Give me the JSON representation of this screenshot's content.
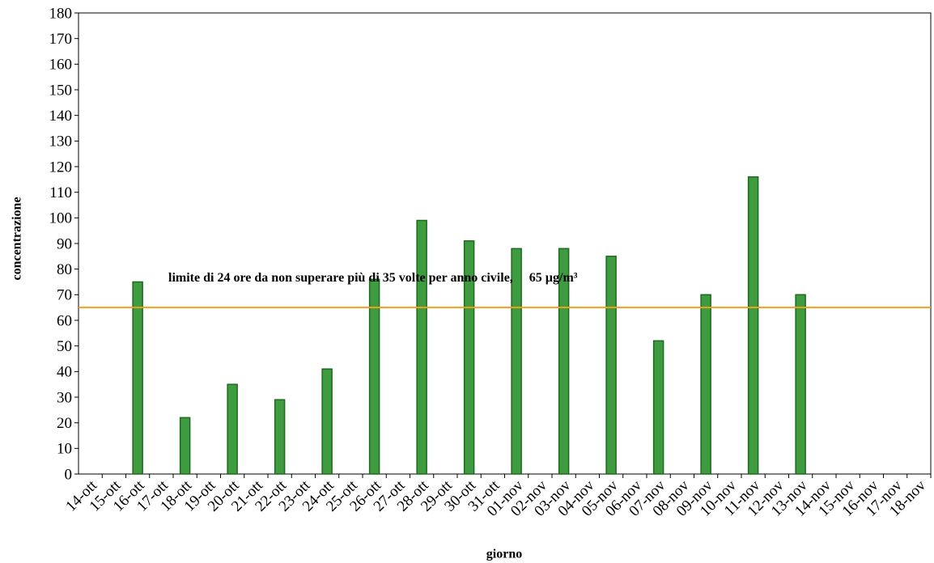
{
  "chart_data": {
    "type": "bar",
    "x_label": "giorno",
    "y_label": "concentrazione",
    "categories": [
      "14-ott",
      "15-ott",
      "16-ott",
      "17-ott",
      "18-ott",
      "19-ott",
      "20-ott",
      "21-ott",
      "22-ott",
      "23-ott",
      "24-ott",
      "25-ott",
      "26-ott",
      "27-ott",
      "28-ott",
      "29-ott",
      "30-ott",
      "31-ott",
      "01-nov",
      "02-nov",
      "03-nov",
      "04-nov",
      "05-nov",
      "06-nov",
      "07-nov",
      "08-nov",
      "09-nov",
      "10-nov",
      "11-nov",
      "12-nov",
      "13-nov",
      "14-nov",
      "15-nov",
      "16-nov",
      "17-nov",
      "18-nov"
    ],
    "values": [
      null,
      null,
      75,
      null,
      22,
      null,
      35,
      null,
      29,
      null,
      41,
      null,
      76,
      null,
      99,
      null,
      91,
      null,
      88,
      null,
      88,
      null,
      85,
      null,
      52,
      null,
      70,
      null,
      116,
      null,
      70,
      null,
      null,
      null,
      null,
      null
    ],
    "color": "#3f9b3f",
    "limit": {
      "value": 65,
      "label": "limite di 24 ore da non superare più di 35 volte per anno civile,     65 µg/m³",
      "color": "#f0a020"
    },
    "ylim": [
      0,
      180
    ],
    "yticks": [
      0,
      10,
      20,
      30,
      40,
      50,
      60,
      70,
      80,
      90,
      100,
      110,
      120,
      130,
      140,
      150,
      160,
      170,
      180
    ]
  }
}
